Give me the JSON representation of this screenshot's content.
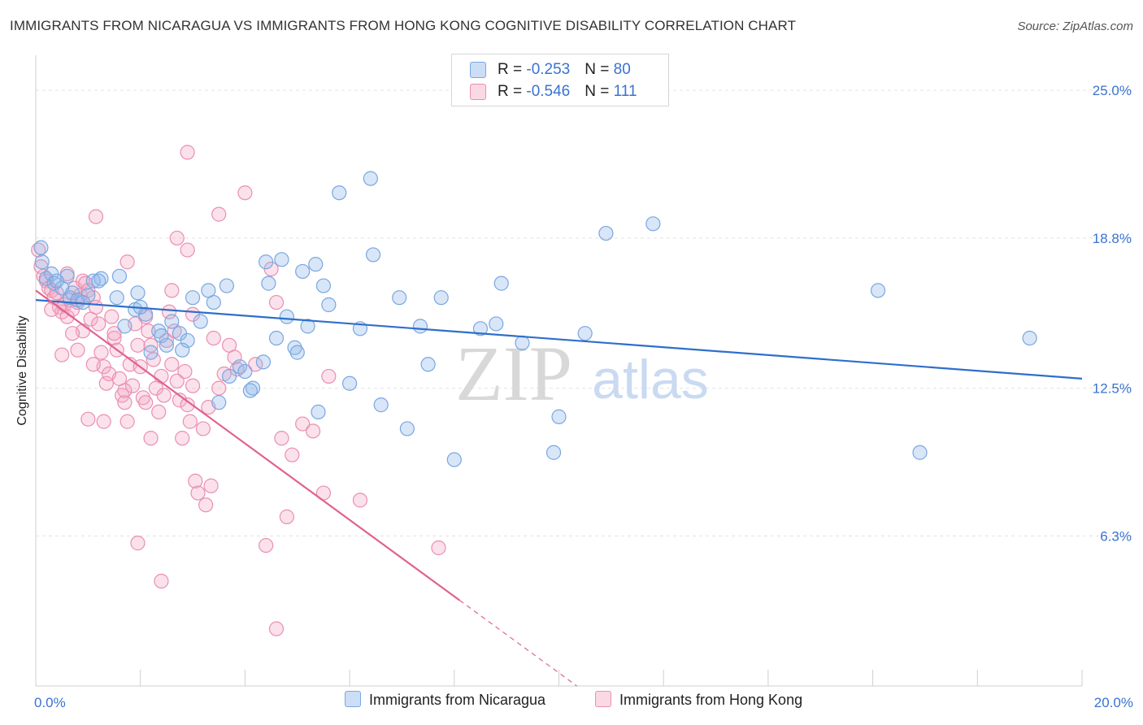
{
  "title": "IMMIGRANTS FROM NICARAGUA VS IMMIGRANTS FROM HONG KONG COGNITIVE DISABILITY CORRELATION CHART",
  "source": "Source: ZipAtlas.com",
  "watermark": {
    "zip": "ZIP",
    "atlas": "atlas"
  },
  "colors": {
    "blue": "#7aa7e0",
    "blue_fill": "rgba(142,182,235,0.35)",
    "blue_line": "#2e6fcb",
    "pink": "#ea8fb0",
    "pink_fill": "rgba(244,170,198,0.35)",
    "pink_line": "#e0628f",
    "axis_text": "#3b72d0",
    "grid": "#e3e3e3"
  },
  "legend_top": {
    "rows": [
      {
        "r_label": "R = ",
        "r_value": "-0.253",
        "n_label": "N = ",
        "n_value": "80"
      },
      {
        "r_label": "R = ",
        "r_value": "-0.546",
        "n_label": "N = ",
        "n_value": "111"
      }
    ]
  },
  "legend_bottom": {
    "items": [
      "Immigrants from Nicaragua",
      "Immigrants from Hong Kong"
    ]
  },
  "chart_data": {
    "type": "scatter",
    "title": "IMMIGRANTS FROM NICARAGUA VS IMMIGRANTS FROM HONG KONG COGNITIVE DISABILITY CORRELATION CHART",
    "xlabel": "",
    "ylabel": "Cognitive Disability",
    "xlim": [
      0,
      20
    ],
    "ylim": [
      0,
      26.2
    ],
    "x_tick_labels": [
      "0.0%",
      "20.0%"
    ],
    "y_ticks": [
      6.3,
      12.5,
      18.8,
      25.0
    ],
    "y_tick_labels": [
      "6.3%",
      "12.5%",
      "18.8%",
      "25.0%"
    ],
    "grid": "horizontal dashed",
    "legend_placement": "top-center",
    "series": [
      {
        "name": "Immigrants from Nicaragua",
        "r": -0.253,
        "n": 80,
        "trend": {
          "x": [
            0,
            20
          ],
          "y": [
            16.2,
            12.9
          ],
          "dashed_from": null
        },
        "points": [
          [
            0.1,
            18.4
          ],
          [
            0.12,
            17.8
          ],
          [
            0.2,
            17.1
          ],
          [
            0.3,
            17.3
          ],
          [
            0.35,
            16.9
          ],
          [
            0.5,
            16.7
          ],
          [
            0.6,
            17.2
          ],
          [
            0.65,
            16.3
          ],
          [
            0.7,
            16.5
          ],
          [
            0.8,
            16.2
          ],
          [
            1.1,
            17.0
          ],
          [
            1.25,
            17.1
          ],
          [
            1.0,
            16.4
          ],
          [
            1.2,
            17.0
          ],
          [
            1.55,
            16.3
          ],
          [
            1.6,
            17.2
          ],
          [
            1.95,
            16.5
          ],
          [
            1.9,
            15.8
          ],
          [
            2.1,
            15.6
          ],
          [
            2.35,
            14.9
          ],
          [
            2.4,
            14.7
          ],
          [
            2.5,
            14.3
          ],
          [
            2.6,
            15.3
          ],
          [
            2.75,
            14.8
          ],
          [
            2.9,
            14.5
          ],
          [
            3.0,
            16.3
          ],
          [
            3.15,
            15.3
          ],
          [
            3.3,
            16.6
          ],
          [
            3.4,
            16.1
          ],
          [
            3.65,
            16.8
          ],
          [
            3.7,
            13.0
          ],
          [
            3.9,
            13.4
          ],
          [
            4.0,
            13.2
          ],
          [
            4.15,
            12.5
          ],
          [
            4.35,
            13.6
          ],
          [
            4.4,
            17.8
          ],
          [
            4.45,
            16.9
          ],
          [
            4.6,
            14.6
          ],
          [
            4.7,
            17.9
          ],
          [
            4.8,
            15.5
          ],
          [
            4.95,
            14.2
          ],
          [
            5.1,
            17.4
          ],
          [
            5.2,
            15.1
          ],
          [
            5.35,
            17.7
          ],
          [
            5.4,
            11.5
          ],
          [
            5.5,
            16.8
          ],
          [
            5.6,
            16.0
          ],
          [
            5.8,
            20.7
          ],
          [
            6.0,
            12.7
          ],
          [
            6.2,
            15.0
          ],
          [
            6.4,
            21.3
          ],
          [
            6.45,
            18.1
          ],
          [
            6.6,
            11.8
          ],
          [
            6.95,
            16.3
          ],
          [
            7.1,
            10.8
          ],
          [
            7.35,
            15.1
          ],
          [
            7.5,
            13.5
          ],
          [
            7.75,
            16.3
          ],
          [
            8.0,
            9.5
          ],
          [
            8.5,
            15.0
          ],
          [
            8.8,
            15.2
          ],
          [
            8.9,
            16.9
          ],
          [
            9.3,
            14.4
          ],
          [
            9.9,
            9.8
          ],
          [
            10.0,
            11.3
          ],
          [
            10.5,
            14.8
          ],
          [
            10.9,
            19.0
          ],
          [
            11.8,
            19.4
          ],
          [
            16.1,
            16.6
          ],
          [
            16.9,
            9.8
          ],
          [
            19.0,
            14.6
          ],
          [
            0.4,
            17.0
          ],
          [
            0.9,
            16.1
          ],
          [
            1.7,
            15.1
          ],
          [
            2.0,
            15.9
          ],
          [
            2.2,
            14.0
          ],
          [
            2.8,
            14.1
          ],
          [
            3.5,
            11.9
          ],
          [
            4.1,
            12.4
          ],
          [
            5.0,
            14.0
          ]
        ]
      },
      {
        "name": "Immigrants from Hong Kong",
        "r": -0.546,
        "n": 111,
        "trend": {
          "x": [
            0,
            20
          ],
          "y": [
            16.6,
            -15.5
          ],
          "solid_until_x": 8.1
        },
        "points": [
          [
            0.05,
            18.3
          ],
          [
            0.1,
            17.6
          ],
          [
            0.15,
            17.2
          ],
          [
            0.2,
            17.0
          ],
          [
            0.25,
            16.7
          ],
          [
            0.3,
            16.6
          ],
          [
            0.35,
            16.3
          ],
          [
            0.4,
            16.5
          ],
          [
            0.45,
            15.9
          ],
          [
            0.5,
            15.7
          ],
          [
            0.55,
            16.0
          ],
          [
            0.6,
            15.5
          ],
          [
            0.65,
            16.2
          ],
          [
            0.7,
            15.8
          ],
          [
            0.75,
            16.7
          ],
          [
            0.8,
            16.1
          ],
          [
            0.85,
            16.4
          ],
          [
            0.9,
            17.0
          ],
          [
            0.95,
            16.9
          ],
          [
            1.0,
            16.6
          ],
          [
            1.05,
            15.4
          ],
          [
            1.1,
            16.3
          ],
          [
            1.15,
            15.9
          ],
          [
            0.6,
            17.3
          ],
          [
            0.9,
            14.9
          ],
          [
            0.8,
            14.1
          ],
          [
            1.2,
            15.2
          ],
          [
            1.25,
            14.0
          ],
          [
            1.3,
            13.4
          ],
          [
            1.35,
            12.7
          ],
          [
            1.4,
            13.1
          ],
          [
            1.45,
            15.5
          ],
          [
            1.5,
            14.6
          ],
          [
            1.55,
            14.1
          ],
          [
            1.6,
            12.9
          ],
          [
            1.65,
            12.2
          ],
          [
            1.7,
            11.9
          ],
          [
            1.75,
            11.1
          ],
          [
            1.8,
            13.5
          ],
          [
            1.85,
            12.6
          ],
          [
            1.9,
            15.2
          ],
          [
            1.95,
            14.3
          ],
          [
            2.0,
            13.4
          ],
          [
            2.05,
            12.1
          ],
          [
            2.1,
            11.9
          ],
          [
            2.15,
            14.9
          ],
          [
            2.2,
            14.3
          ],
          [
            2.25,
            13.7
          ],
          [
            2.3,
            12.5
          ],
          [
            2.35,
            11.5
          ],
          [
            2.4,
            13.0
          ],
          [
            2.45,
            12.2
          ],
          [
            2.5,
            14.5
          ],
          [
            2.55,
            15.7
          ],
          [
            2.6,
            16.6
          ],
          [
            2.65,
            14.9
          ],
          [
            2.7,
            12.8
          ],
          [
            2.75,
            12.0
          ],
          [
            2.8,
            10.4
          ],
          [
            2.85,
            13.2
          ],
          [
            2.9,
            11.8
          ],
          [
            2.95,
            11.1
          ],
          [
            3.0,
            12.6
          ],
          [
            3.05,
            8.6
          ],
          [
            3.1,
            8.1
          ],
          [
            3.2,
            10.8
          ],
          [
            3.25,
            7.6
          ],
          [
            3.35,
            8.4
          ],
          [
            3.4,
            14.6
          ],
          [
            3.5,
            12.5
          ],
          [
            3.7,
            14.3
          ],
          [
            3.8,
            13.8
          ],
          [
            3.85,
            13.3
          ],
          [
            4.0,
            20.7
          ],
          [
            3.5,
            19.8
          ],
          [
            2.9,
            22.4
          ],
          [
            1.15,
            19.7
          ],
          [
            2.7,
            18.8
          ],
          [
            2.9,
            18.3
          ],
          [
            1.75,
            17.8
          ],
          [
            4.5,
            17.5
          ],
          [
            4.6,
            16.1
          ],
          [
            4.7,
            10.4
          ],
          [
            4.9,
            9.7
          ],
          [
            5.1,
            11.0
          ],
          [
            5.3,
            10.7
          ],
          [
            5.5,
            8.1
          ],
          [
            5.6,
            13.0
          ],
          [
            6.2,
            7.8
          ],
          [
            4.4,
            5.9
          ],
          [
            4.6,
            2.4
          ],
          [
            4.8,
            7.1
          ],
          [
            2.4,
            4.4
          ],
          [
            1.95,
            6.0
          ],
          [
            7.7,
            5.8
          ],
          [
            0.3,
            15.8
          ],
          [
            0.5,
            13.9
          ],
          [
            0.7,
            14.8
          ],
          [
            1.0,
            11.2
          ],
          [
            1.1,
            13.5
          ],
          [
            1.3,
            11.1
          ],
          [
            1.5,
            14.8
          ],
          [
            1.7,
            12.4
          ],
          [
            2.1,
            15.5
          ],
          [
            2.2,
            10.4
          ],
          [
            2.6,
            13.5
          ],
          [
            3.0,
            15.6
          ],
          [
            3.3,
            11.7
          ],
          [
            3.6,
            13.1
          ],
          [
            4.2,
            13.5
          ]
        ]
      }
    ]
  }
}
